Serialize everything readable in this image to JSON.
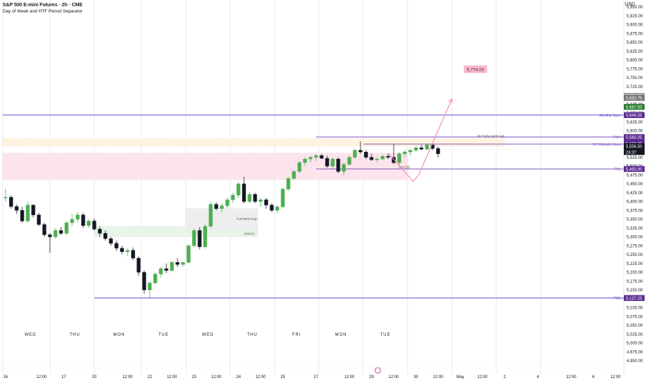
{
  "header": {
    "title": "S&P 500 E-mini Futures · 2h · CME",
    "subtitle": "Day of Week and HTF Period Separator",
    "currency": "USD"
  },
  "colors": {
    "up": "#4caf50",
    "down": "#131722",
    "purple": "#7e57c2",
    "label_dark": "#5b2c8f",
    "pink": "#f48fb1",
    "badge_bg": "#f8bbd0"
  },
  "chart_data": {
    "type": "candlestick",
    "y_ticks": [
      4950,
      4975,
      5000,
      5025,
      5050,
      5075,
      5100,
      5125,
      5150,
      5175,
      5200,
      5225,
      5250,
      5275,
      5300,
      5325,
      5350,
      5375,
      5400,
      5425,
      5450,
      5475,
      5500,
      5525,
      5550,
      5575,
      5600,
      5625,
      5650,
      5675,
      5700,
      5725,
      5750,
      5775,
      5800,
      5825,
      5850,
      5875,
      5900,
      5925,
      5950
    ],
    "ylim": [
      4940,
      5955
    ],
    "price_format": "comma-2dp",
    "x_ticks": [
      {
        "label": "16",
        "bar": 1
      },
      {
        "label": "12:00",
        "bar": 14
      },
      {
        "label": "17",
        "bar": 22
      },
      {
        "label": "20",
        "bar": 33
      },
      {
        "label": "12:00",
        "bar": 45
      },
      {
        "label": "22",
        "bar": 53
      },
      {
        "label": "12:00",
        "bar": 61
      },
      {
        "label": "23",
        "bar": 69
      },
      {
        "label": "12:00",
        "bar": 77
      },
      {
        "label": "24",
        "bar": 85
      },
      {
        "label": "12:00",
        "bar": 93
      },
      {
        "label": "25",
        "bar": 101
      },
      {
        "label": "27",
        "bar": 113
      },
      {
        "label": "12:00",
        "bar": 125
      },
      {
        "label": "29",
        "bar": 133
      },
      {
        "label": "12:00",
        "bar": 141
      },
      {
        "label": "30",
        "bar": 149
      },
      {
        "label": "12:00",
        "bar": 157
      },
      {
        "label": "May",
        "bar": 165
      },
      {
        "label": "12:00",
        "bar": 173
      },
      {
        "label": "2",
        "bar": 181
      },
      {
        "label": "4",
        "bar": 193
      },
      {
        "label": "12:00",
        "bar": 205
      },
      {
        "label": "6",
        "bar": 213
      },
      {
        "label": "12:00",
        "bar": 221
      }
    ],
    "day_labels": [
      {
        "label": "WED",
        "bar": 10
      },
      {
        "label": "THU",
        "bar": 26
      },
      {
        "label": "MON",
        "bar": 42
      },
      {
        "label": "TUE",
        "bar": 58
      },
      {
        "label": "WED",
        "bar": 74
      },
      {
        "label": "THU",
        "bar": 90
      },
      {
        "label": "FRI",
        "bar": 106
      },
      {
        "label": "MON",
        "bar": 122
      },
      {
        "label": "TUE",
        "bar": 138
      }
    ],
    "separators": [
      0,
      17,
      33,
      50,
      66,
      82,
      98,
      114,
      130,
      146,
      162,
      178,
      194
    ],
    "candles": [
      [
        5410,
        5435,
        5400,
        5412
      ],
      [
        5412,
        5418,
        5380,
        5386
      ],
      [
        5386,
        5392,
        5365,
        5375
      ],
      [
        5375,
        5385,
        5340,
        5345
      ],
      [
        5345,
        5400,
        5340,
        5390
      ],
      [
        5390,
        5392,
        5355,
        5362
      ],
      [
        5362,
        5368,
        5330,
        5335
      ],
      [
        5335,
        5340,
        5300,
        5306
      ],
      [
        5306,
        5310,
        5255,
        5300
      ],
      [
        5300,
        5325,
        5295,
        5318
      ],
      [
        5318,
        5328,
        5305,
        5310
      ],
      [
        5310,
        5345,
        5305,
        5340
      ],
      [
        5340,
        5365,
        5330,
        5350
      ],
      [
        5350,
        5370,
        5340,
        5362
      ],
      [
        5362,
        5368,
        5325,
        5332
      ],
      [
        5332,
        5350,
        5325,
        5345
      ],
      [
        5345,
        5352,
        5318,
        5322
      ],
      [
        5322,
        5330,
        5300,
        5310
      ],
      [
        5310,
        5318,
        5290,
        5295
      ],
      [
        5295,
        5300,
        5275,
        5282
      ],
      [
        5282,
        5290,
        5260,
        5268
      ],
      [
        5268,
        5275,
        5250,
        5258
      ],
      [
        5258,
        5268,
        5245,
        5262
      ],
      [
        5262,
        5270,
        5235,
        5240
      ],
      [
        5240,
        5245,
        5190,
        5200
      ],
      [
        5200,
        5205,
        5140,
        5150
      ],
      [
        5150,
        5175,
        5128,
        5170
      ],
      [
        5170,
        5200,
        5165,
        5195
      ],
      [
        5195,
        5215,
        5185,
        5210
      ],
      [
        5210,
        5225,
        5198,
        5205
      ],
      [
        5205,
        5232,
        5200,
        5228
      ],
      [
        5228,
        5240,
        5215,
        5222
      ],
      [
        5222,
        5230,
        5215,
        5228
      ],
      [
        5228,
        5280,
        5225,
        5275
      ],
      [
        5275,
        5325,
        5270,
        5318
      ],
      [
        5318,
        5328,
        5265,
        5272
      ],
      [
        5272,
        5335,
        5268,
        5330
      ],
      [
        5330,
        5400,
        5325,
        5392
      ],
      [
        5392,
        5398,
        5375,
        5380
      ],
      [
        5380,
        5395,
        5370,
        5388
      ],
      [
        5388,
        5410,
        5380,
        5405
      ],
      [
        5405,
        5425,
        5395,
        5418
      ],
      [
        5418,
        5455,
        5410,
        5450
      ],
      [
        5450,
        5470,
        5395,
        5400
      ],
      [
        5400,
        5428,
        5395,
        5420
      ],
      [
        5420,
        5425,
        5395,
        5400
      ],
      [
        5400,
        5410,
        5385,
        5405
      ],
      [
        5405,
        5410,
        5380,
        5390
      ],
      [
        5390,
        5395,
        5370,
        5375
      ],
      [
        5375,
        5390,
        5368,
        5385
      ],
      [
        5385,
        5440,
        5380,
        5435
      ],
      [
        5435,
        5470,
        5430,
        5465
      ],
      [
        5465,
        5490,
        5460,
        5485
      ],
      [
        5485,
        5515,
        5480,
        5510
      ],
      [
        5510,
        5525,
        5500,
        5520
      ],
      [
        5520,
        5530,
        5510,
        5525
      ],
      [
        5525,
        5535,
        5515,
        5530
      ],
      [
        5530,
        5535,
        5520,
        5522
      ],
      [
        5522,
        5530,
        5495,
        5500
      ],
      [
        5500,
        5525,
        5490,
        5520
      ],
      [
        5520,
        5525,
        5480,
        5485
      ],
      [
        5485,
        5510,
        5475,
        5505
      ],
      [
        5505,
        5530,
        5500,
        5525
      ],
      [
        5525,
        5550,
        5520,
        5545
      ],
      [
        5545,
        5570,
        5535,
        5540
      ],
      [
        5540,
        5545,
        5520,
        5525
      ],
      [
        5525,
        5535,
        5515,
        5518
      ],
      [
        5518,
        5525,
        5510,
        5520
      ],
      [
        5520,
        5532,
        5518,
        5528
      ],
      [
        5528,
        5535,
        5520,
        5525
      ],
      [
        5525,
        5562,
        5505,
        5510
      ],
      [
        5510,
        5540,
        5492,
        5535
      ],
      [
        5535,
        5545,
        5525,
        5540
      ],
      [
        5540,
        5550,
        5530,
        5545
      ],
      [
        5545,
        5555,
        5540,
        5552
      ],
      [
        5552,
        5560,
        5545,
        5548
      ],
      [
        5548,
        5565,
        5545,
        5560
      ],
      [
        5560,
        5562,
        5545,
        5550
      ],
      [
        5550,
        5555,
        5525,
        5535
      ]
    ],
    "candle_bars": [
      1,
      3,
      5,
      7,
      9,
      11,
      13,
      15,
      17,
      19,
      21,
      23,
      25,
      27,
      29,
      31,
      33,
      35,
      37,
      39,
      41,
      43,
      45,
      47,
      49,
      51,
      53,
      55,
      57,
      59,
      61,
      63,
      65,
      67,
      69,
      71,
      73,
      75,
      77,
      79,
      81,
      83,
      85,
      87,
      89,
      91,
      93,
      95,
      97,
      99,
      101,
      103,
      105,
      107,
      109,
      111,
      113,
      115,
      117,
      119,
      121,
      123,
      125,
      127,
      129,
      131,
      133,
      135,
      137,
      139,
      141,
      143,
      145,
      147,
      149,
      151,
      153,
      155,
      157
    ],
    "zones": [
      {
        "from_bar": 0,
        "to_bar": 181,
        "top": 5578,
        "bottom": 5556,
        "color": "#fff3e0"
      },
      {
        "from_bar": 0,
        "to_bar": 146,
        "top": 5537,
        "bottom": 5462,
        "color": "#fce4ec"
      },
      {
        "from_bar": 33,
        "to_bar": 92,
        "top": 5330,
        "bottom": 5300,
        "color": "#e8f5e9"
      },
      {
        "from_bar": 66,
        "to_bar": 92,
        "top": 5380,
        "bottom": 5320,
        "color": "#eeeeee"
      }
    ],
    "levels": [
      {
        "name": "Monthly Open",
        "value": 5644.25,
        "label": "Monthly Open",
        "from_bar": 0,
        "color": "#5c4ed4",
        "tag": "5,644.25"
      },
      {
        "name": "PWH",
        "value": 5582.25,
        "label": "PWH",
        "from_bar": 113,
        "color": "#7e57c2",
        "tag": "5,582.25"
      },
      {
        "name": "NY Midnight Open",
        "value": 5562.25,
        "label": "NY Midnight Open",
        "from_bar": 130,
        "color": "#7e57c2",
        "tag": ""
      },
      {
        "name": "PDL",
        "value": 5492.0,
        "label": "PDL",
        "from_bar": 113,
        "color": "#7e57c2",
        "tag": "5,492.00"
      },
      {
        "name": "PWL",
        "value": 5127.25,
        "label": "PWL",
        "from_bar": 33,
        "color": "#5c4ed4",
        "tag": "5,127.25"
      }
    ],
    "annotations": [
      {
        "text": "4h Early April Gap",
        "bar": 176,
        "value": 5582
      },
      {
        "text": "Tue/Wed Gap",
        "bar": 88,
        "value": 5348
      },
      {
        "text": "NWOG",
        "bar": 89,
        "value": 5306
      },
      {
        "text": "8H OB",
        "bar": 145,
        "value": 5494
      }
    ],
    "price_tags": [
      {
        "value": 5698.75,
        "label": "5,698.75",
        "bg": "#9e9e9e",
        "fg": "#ffffff"
      },
      {
        "value": 5692.75,
        "label": "5,692.75",
        "bg": "#757575",
        "fg": "#ffffff"
      },
      {
        "value": 5667.5,
        "label": "5,667.50",
        "bg": "#2e7d32",
        "fg": "#ffffff"
      },
      {
        "value": 5578.75,
        "label": "5,578.75",
        "bg": "#5b2c8f",
        "fg": "#ffffff"
      },
      {
        "value": 5562.75,
        "label": "5,562.75",
        "bg": "#5b2c8f",
        "fg": "#ffffff"
      },
      {
        "value": 5556.5,
        "label": "5,556.50",
        "bg": "#131722",
        "fg": "#ffffff"
      }
    ],
    "countdown": "24:37",
    "target_badge": "5,774.00",
    "target_value": 5774,
    "projection": [
      [
        139,
        5537
      ],
      [
        148,
        5457
      ],
      [
        150,
        5475
      ],
      [
        162,
        5690
      ]
    ]
  }
}
